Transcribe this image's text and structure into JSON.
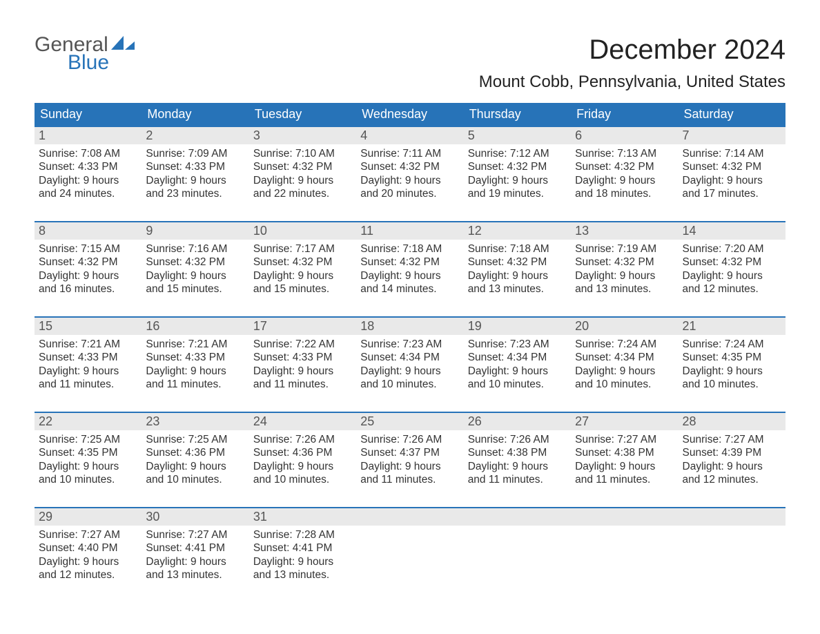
{
  "logo": {
    "word1": "General",
    "word2": "Blue"
  },
  "title": "December 2024",
  "location": "Mount Cobb, Pennsylvania, United States",
  "colors": {
    "header_bg": "#2773b8",
    "header_text": "#ffffff",
    "daynum_bg": "#e9e9e9",
    "text": "#333333",
    "week_border": "#2773b8",
    "logo_blue": "#2773b8",
    "logo_gray": "#555555"
  },
  "day_headers": [
    "Sunday",
    "Monday",
    "Tuesday",
    "Wednesday",
    "Thursday",
    "Friday",
    "Saturday"
  ],
  "weeks": [
    [
      {
        "n": "1",
        "sr": "Sunrise: 7:08 AM",
        "ss": "Sunset: 4:33 PM",
        "d1": "Daylight: 9 hours",
        "d2": "and 24 minutes."
      },
      {
        "n": "2",
        "sr": "Sunrise: 7:09 AM",
        "ss": "Sunset: 4:33 PM",
        "d1": "Daylight: 9 hours",
        "d2": "and 23 minutes."
      },
      {
        "n": "3",
        "sr": "Sunrise: 7:10 AM",
        "ss": "Sunset: 4:32 PM",
        "d1": "Daylight: 9 hours",
        "d2": "and 22 minutes."
      },
      {
        "n": "4",
        "sr": "Sunrise: 7:11 AM",
        "ss": "Sunset: 4:32 PM",
        "d1": "Daylight: 9 hours",
        "d2": "and 20 minutes."
      },
      {
        "n": "5",
        "sr": "Sunrise: 7:12 AM",
        "ss": "Sunset: 4:32 PM",
        "d1": "Daylight: 9 hours",
        "d2": "and 19 minutes."
      },
      {
        "n": "6",
        "sr": "Sunrise: 7:13 AM",
        "ss": "Sunset: 4:32 PM",
        "d1": "Daylight: 9 hours",
        "d2": "and 18 minutes."
      },
      {
        "n": "7",
        "sr": "Sunrise: 7:14 AM",
        "ss": "Sunset: 4:32 PM",
        "d1": "Daylight: 9 hours",
        "d2": "and 17 minutes."
      }
    ],
    [
      {
        "n": "8",
        "sr": "Sunrise: 7:15 AM",
        "ss": "Sunset: 4:32 PM",
        "d1": "Daylight: 9 hours",
        "d2": "and 16 minutes."
      },
      {
        "n": "9",
        "sr": "Sunrise: 7:16 AM",
        "ss": "Sunset: 4:32 PM",
        "d1": "Daylight: 9 hours",
        "d2": "and 15 minutes."
      },
      {
        "n": "10",
        "sr": "Sunrise: 7:17 AM",
        "ss": "Sunset: 4:32 PM",
        "d1": "Daylight: 9 hours",
        "d2": "and 15 minutes."
      },
      {
        "n": "11",
        "sr": "Sunrise: 7:18 AM",
        "ss": "Sunset: 4:32 PM",
        "d1": "Daylight: 9 hours",
        "d2": "and 14 minutes."
      },
      {
        "n": "12",
        "sr": "Sunrise: 7:18 AM",
        "ss": "Sunset: 4:32 PM",
        "d1": "Daylight: 9 hours",
        "d2": "and 13 minutes."
      },
      {
        "n": "13",
        "sr": "Sunrise: 7:19 AM",
        "ss": "Sunset: 4:32 PM",
        "d1": "Daylight: 9 hours",
        "d2": "and 13 minutes."
      },
      {
        "n": "14",
        "sr": "Sunrise: 7:20 AM",
        "ss": "Sunset: 4:32 PM",
        "d1": "Daylight: 9 hours",
        "d2": "and 12 minutes."
      }
    ],
    [
      {
        "n": "15",
        "sr": "Sunrise: 7:21 AM",
        "ss": "Sunset: 4:33 PM",
        "d1": "Daylight: 9 hours",
        "d2": "and 11 minutes."
      },
      {
        "n": "16",
        "sr": "Sunrise: 7:21 AM",
        "ss": "Sunset: 4:33 PM",
        "d1": "Daylight: 9 hours",
        "d2": "and 11 minutes."
      },
      {
        "n": "17",
        "sr": "Sunrise: 7:22 AM",
        "ss": "Sunset: 4:33 PM",
        "d1": "Daylight: 9 hours",
        "d2": "and 11 minutes."
      },
      {
        "n": "18",
        "sr": "Sunrise: 7:23 AM",
        "ss": "Sunset: 4:34 PM",
        "d1": "Daylight: 9 hours",
        "d2": "and 10 minutes."
      },
      {
        "n": "19",
        "sr": "Sunrise: 7:23 AM",
        "ss": "Sunset: 4:34 PM",
        "d1": "Daylight: 9 hours",
        "d2": "and 10 minutes."
      },
      {
        "n": "20",
        "sr": "Sunrise: 7:24 AM",
        "ss": "Sunset: 4:34 PM",
        "d1": "Daylight: 9 hours",
        "d2": "and 10 minutes."
      },
      {
        "n": "21",
        "sr": "Sunrise: 7:24 AM",
        "ss": "Sunset: 4:35 PM",
        "d1": "Daylight: 9 hours",
        "d2": "and 10 minutes."
      }
    ],
    [
      {
        "n": "22",
        "sr": "Sunrise: 7:25 AM",
        "ss": "Sunset: 4:35 PM",
        "d1": "Daylight: 9 hours",
        "d2": "and 10 minutes."
      },
      {
        "n": "23",
        "sr": "Sunrise: 7:25 AM",
        "ss": "Sunset: 4:36 PM",
        "d1": "Daylight: 9 hours",
        "d2": "and 10 minutes."
      },
      {
        "n": "24",
        "sr": "Sunrise: 7:26 AM",
        "ss": "Sunset: 4:36 PM",
        "d1": "Daylight: 9 hours",
        "d2": "and 10 minutes."
      },
      {
        "n": "25",
        "sr": "Sunrise: 7:26 AM",
        "ss": "Sunset: 4:37 PM",
        "d1": "Daylight: 9 hours",
        "d2": "and 11 minutes."
      },
      {
        "n": "26",
        "sr": "Sunrise: 7:26 AM",
        "ss": "Sunset: 4:38 PM",
        "d1": "Daylight: 9 hours",
        "d2": "and 11 minutes."
      },
      {
        "n": "27",
        "sr": "Sunrise: 7:27 AM",
        "ss": "Sunset: 4:38 PM",
        "d1": "Daylight: 9 hours",
        "d2": "and 11 minutes."
      },
      {
        "n": "28",
        "sr": "Sunrise: 7:27 AM",
        "ss": "Sunset: 4:39 PM",
        "d1": "Daylight: 9 hours",
        "d2": "and 12 minutes."
      }
    ],
    [
      {
        "n": "29",
        "sr": "Sunrise: 7:27 AM",
        "ss": "Sunset: 4:40 PM",
        "d1": "Daylight: 9 hours",
        "d2": "and 12 minutes."
      },
      {
        "n": "30",
        "sr": "Sunrise: 7:27 AM",
        "ss": "Sunset: 4:41 PM",
        "d1": "Daylight: 9 hours",
        "d2": "and 13 minutes."
      },
      {
        "n": "31",
        "sr": "Sunrise: 7:28 AM",
        "ss": "Sunset: 4:41 PM",
        "d1": "Daylight: 9 hours",
        "d2": "and 13 minutes."
      },
      null,
      null,
      null,
      null
    ]
  ]
}
